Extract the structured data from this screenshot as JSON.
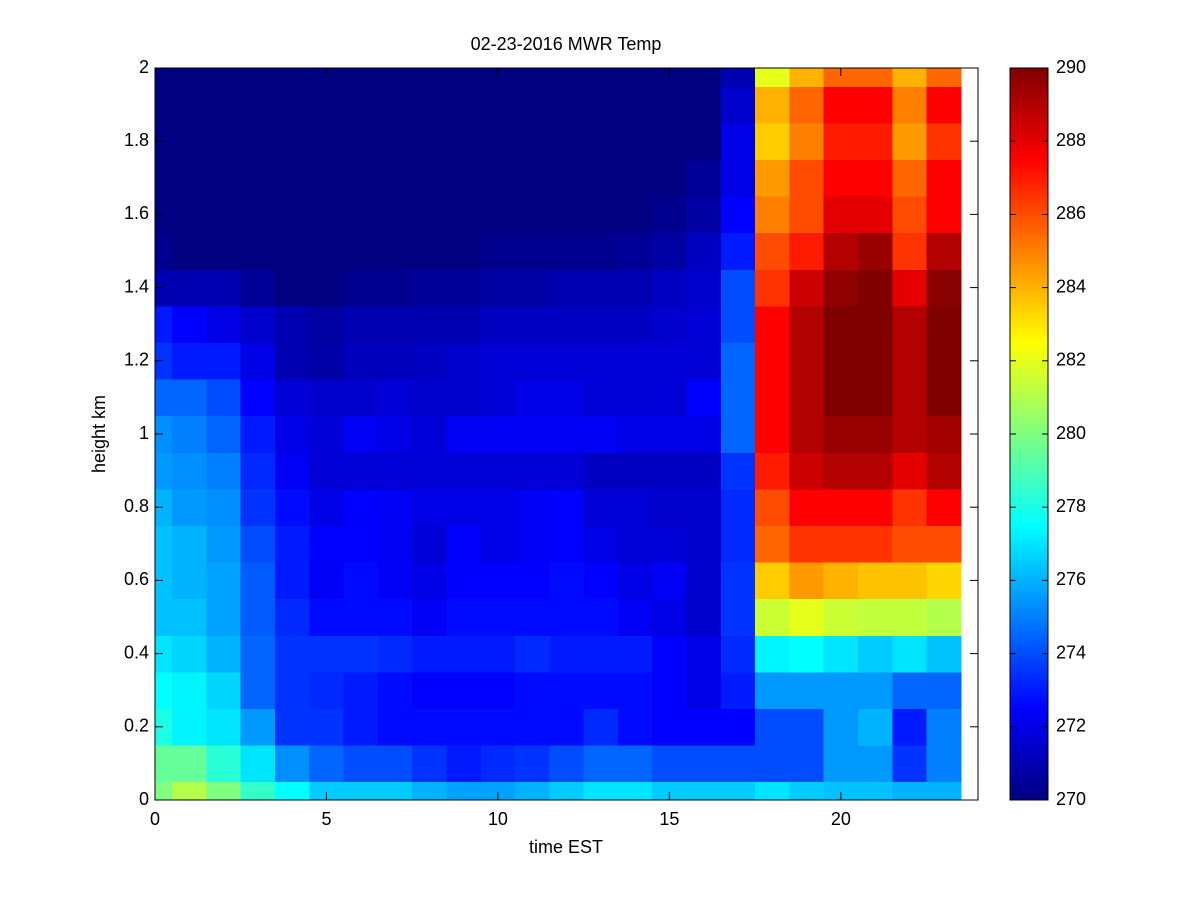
{
  "chart_data": {
    "type": "heatmap",
    "title": "02-23-2016 MWR Temp",
    "x_label": "time EST",
    "y_label": "height km",
    "colormap": "jet",
    "clim": [
      270,
      290
    ],
    "cticks": [
      270,
      272,
      274,
      276,
      278,
      280,
      282,
      284,
      286,
      288,
      290
    ],
    "xlim": [
      0,
      24
    ],
    "ylim": [
      0,
      2
    ],
    "xticks": [
      0,
      5,
      10,
      15,
      20
    ],
    "yticks": [
      0,
      0.2,
      0.4,
      0.6,
      0.8,
      1,
      1.2,
      1.4,
      1.6,
      1.8,
      2
    ],
    "x": [
      0,
      1,
      2,
      3,
      4,
      5,
      6,
      7,
      8,
      9,
      10,
      11,
      12,
      13,
      14,
      15,
      16,
      17,
      18,
      19,
      20,
      21,
      22,
      23
    ],
    "y": [
      0,
      0.1,
      0.2,
      0.3,
      0.4,
      0.5,
      0.6,
      0.7,
      0.8,
      0.9,
      1,
      1.1,
      1.2,
      1.3,
      1.4,
      1.5,
      1.6,
      1.7,
      1.8,
      1.9,
      2
    ],
    "z": [
      [
        280,
        281,
        280,
        278.5,
        277.5,
        276.5,
        276.5,
        276.5,
        276,
        275.7,
        275.7,
        276,
        276.5,
        277,
        277,
        276.5,
        276.5,
        276.5,
        277,
        276.5,
        276.3,
        276.3,
        276,
        276
      ],
      [
        279.5,
        279.5,
        278.3,
        277,
        275.3,
        274.5,
        274,
        274,
        273.5,
        273,
        273.3,
        273.5,
        274,
        274.5,
        274.5,
        274,
        274,
        274,
        274,
        274,
        275.5,
        275.5,
        273.5,
        275
      ],
      [
        278,
        277.3,
        277,
        275.5,
        273.5,
        273.5,
        273,
        272.7,
        272.7,
        272.7,
        272.7,
        272.7,
        272.7,
        273.3,
        272.7,
        272.5,
        272.5,
        272.5,
        274,
        274,
        275.5,
        276,
        273,
        275
      ],
      [
        277.5,
        277.3,
        276.7,
        274.5,
        273.5,
        273.3,
        273,
        272.7,
        272.5,
        272.5,
        272.5,
        272.7,
        272.7,
        272.7,
        272.7,
        272.5,
        272,
        273,
        275.5,
        275.5,
        275.5,
        275.5,
        274.5,
        274.5
      ],
      [
        277,
        276.7,
        276,
        274.5,
        273.5,
        273.5,
        273.5,
        273.3,
        273,
        273,
        273,
        273.3,
        273,
        273,
        273,
        272.5,
        272,
        273.3,
        277.3,
        277.5,
        277,
        276.5,
        277,
        276.3
      ],
      [
        276.3,
        276.3,
        275.7,
        274.3,
        273.3,
        272.7,
        272.7,
        272.7,
        272.3,
        272.7,
        272.7,
        272.7,
        272.7,
        272.7,
        272.3,
        272,
        271.5,
        273.5,
        281.5,
        282,
        281.5,
        281.3,
        281.3,
        281
      ],
      [
        276.3,
        276,
        275.7,
        274.3,
        273,
        272.3,
        272.7,
        272.3,
        272,
        272.5,
        272.5,
        272.5,
        272.7,
        272.5,
        272,
        272.3,
        271.5,
        273.5,
        283.5,
        284.5,
        284,
        283.7,
        283.7,
        283.3
      ],
      [
        276.3,
        276,
        275.5,
        274,
        273,
        272.5,
        272.5,
        272.3,
        271.7,
        272.5,
        272,
        272.3,
        272.5,
        272,
        271.7,
        271.7,
        271.5,
        273.3,
        285.5,
        286.5,
        286.5,
        286.5,
        286,
        286
      ],
      [
        276,
        275.5,
        275.3,
        273.5,
        272.7,
        272,
        272.5,
        272.3,
        272,
        272,
        272,
        272.3,
        272.5,
        271.7,
        271.7,
        271.5,
        271.5,
        273.3,
        286,
        287.5,
        287.5,
        287.5,
        286.5,
        287.5
      ],
      [
        275.5,
        275.3,
        275,
        273.3,
        272.3,
        271.7,
        271.7,
        271.7,
        271.7,
        271.7,
        271.7,
        271.7,
        271.7,
        271.3,
        271.3,
        271.3,
        271.3,
        273.5,
        287,
        288.5,
        289,
        289,
        288,
        289
      ],
      [
        275.3,
        275,
        274.5,
        273,
        272,
        271.7,
        272.3,
        272,
        271.7,
        272.3,
        272.3,
        272.3,
        272.3,
        272.3,
        272,
        272,
        272,
        274.5,
        287.5,
        289,
        289.5,
        289.5,
        289,
        289.3
      ],
      [
        274.5,
        274.5,
        274,
        272.5,
        271.7,
        271.5,
        271.5,
        271.7,
        271.5,
        271.5,
        271.7,
        272,
        272,
        271.7,
        271.7,
        271.7,
        272.5,
        274.5,
        287.5,
        289,
        290,
        290,
        289,
        290
      ],
      [
        273.5,
        273,
        273,
        272,
        271,
        270.8,
        271.2,
        271.2,
        271.3,
        271.5,
        271.7,
        271.7,
        271.7,
        271.7,
        271.7,
        271.7,
        271.7,
        274.5,
        287.5,
        289,
        290,
        290,
        289,
        290
      ],
      [
        273,
        272.5,
        272,
        271.5,
        271,
        270.7,
        271,
        271,
        271,
        271,
        271.3,
        271.3,
        271.3,
        271.3,
        271.3,
        271.5,
        271.7,
        274,
        287.5,
        289,
        290,
        290,
        289,
        290
      ],
      [
        271,
        271,
        271,
        270.5,
        270,
        270,
        270.3,
        270.3,
        270.5,
        270.5,
        270.7,
        270.7,
        271,
        271,
        271,
        271.3,
        271.5,
        274,
        286.5,
        288.5,
        289.7,
        290,
        288,
        289.8
      ],
      [
        270.3,
        270,
        270,
        270,
        270,
        270,
        270,
        270,
        270,
        270,
        270.3,
        270.3,
        270.3,
        270.3,
        270.5,
        270.7,
        271.3,
        273,
        286,
        287,
        289,
        289.5,
        286.5,
        289
      ],
      [
        270,
        270,
        270,
        270,
        270,
        270,
        270,
        270,
        270,
        270,
        270,
        270,
        270,
        270,
        270,
        270.3,
        270.7,
        272.5,
        285,
        286,
        288,
        288,
        286,
        287.5
      ],
      [
        270,
        270,
        270,
        270,
        270,
        270,
        270,
        270,
        270,
        270,
        270,
        270,
        270,
        270,
        270,
        270,
        270.5,
        272,
        284.5,
        286,
        287.5,
        287.5,
        285.5,
        287.5
      ],
      [
        270,
        270,
        270,
        270,
        270,
        270,
        270,
        270,
        270,
        270,
        270,
        270,
        270,
        270,
        270,
        270,
        270,
        272,
        283.5,
        285,
        287,
        287,
        284.5,
        286.5
      ],
      [
        270,
        270,
        270,
        270,
        270,
        270,
        270,
        270,
        270,
        270,
        270,
        270,
        270,
        270,
        270,
        270,
        270,
        271.5,
        284,
        285.5,
        287.5,
        287.5,
        285,
        287.5
      ],
      [
        270,
        270,
        270,
        270,
        270,
        270,
        270,
        270,
        270,
        270,
        270,
        270,
        270,
        270,
        270,
        270,
        270,
        271,
        282,
        284,
        285.5,
        285.5,
        284,
        285.5
      ]
    ]
  }
}
